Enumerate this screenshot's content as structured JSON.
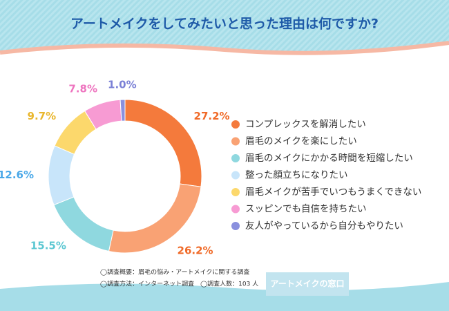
{
  "chart_data": {
    "type": "donut",
    "title": "アートメイクをしてみたいと思った理由は何ですか?",
    "categories": [
      "コンプレックスを解消したい",
      "眉毛のメイクを楽にしたい",
      "眉毛のメイクにかかる時間を短縮したい",
      "整った顔立ちになりたい",
      "眉毛メイクが苦手でいつもうまくできない",
      "スッピンでも自信を持ちたい",
      "友人がやっているから自分もやりたい"
    ],
    "values": [
      27.2,
      26.2,
      15.5,
      12.6,
      9.7,
      7.8,
      1.0
    ],
    "value_labels": [
      "27.2%",
      "26.2%",
      "15.5%",
      "12.6%",
      "9.7%",
      "7.8%",
      "1.0%"
    ],
    "colors": [
      "#f47a3c",
      "#f9a274",
      "#8fd8df",
      "#c8e5fa",
      "#fcd86c",
      "#f79bd3",
      "#8a90de"
    ],
    "label_colors": [
      "#f06a28",
      "#f06a28",
      "#5cc7d2",
      "#4aa8e8",
      "#e9b62c",
      "#ee74bf",
      "#7a80d6"
    ]
  },
  "notes": [
    "◯調査概要：眉毛の悩み・アートメイクに関する調査",
    "◯調査方法：インターネット調査　◯調査人数：103 人"
  ],
  "logo": "アートメイクの窓口"
}
